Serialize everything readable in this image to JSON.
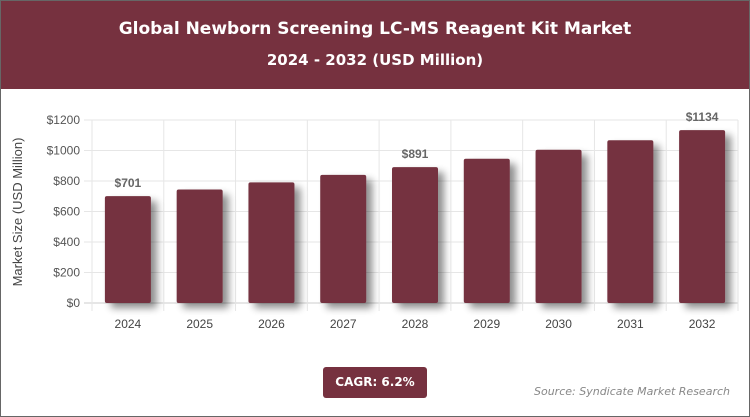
{
  "header": {
    "title": "Global Newborn Screening LC-MS Reagent Kit Market",
    "subtitle": "2024 - 2032 (USD Million)"
  },
  "chart_data": {
    "type": "bar",
    "title": "Global Newborn Screening LC-MS Reagent Kit Market",
    "subtitle": "2024 - 2032 (USD Million)",
    "categories": [
      "2024",
      "2025",
      "2026",
      "2027",
      "2028",
      "2029",
      "2030",
      "2031",
      "2032"
    ],
    "values": [
      701,
      744,
      791,
      840,
      891,
      946,
      1005,
      1067,
      1134
    ],
    "data_labels": {
      "0": "$701",
      "4": "$891",
      "8": "$1134"
    },
    "xlabel": "",
    "ylabel": "Market Size (USD Million)",
    "ylim": [
      0,
      1200
    ],
    "yticks": [
      0,
      200,
      400,
      600,
      800,
      1000,
      1200
    ],
    "ytick_labels": [
      "$0",
      "$200",
      "$400",
      "$600",
      "$800",
      "$1000",
      "$1200"
    ],
    "grid": true,
    "bar_color": "#74313f"
  },
  "footer": {
    "cagr": "CAGR: 6.2%",
    "source": "Source: Syndicate Market Research"
  },
  "colors": {
    "header": "#76313f",
    "bar": "#74313f"
  }
}
